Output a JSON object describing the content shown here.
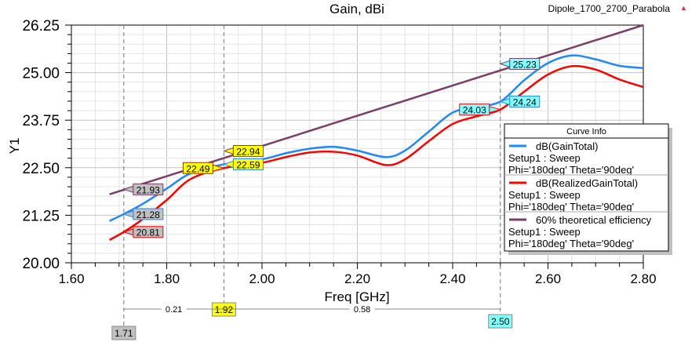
{
  "chart_data": {
    "type": "line",
    "title": "Gain, dBi",
    "project": "Dipole_1700_2700_Parabola",
    "xlabel": "Freq [GHz]",
    "ylabel": "Y1",
    "xlim": [
      1.6,
      2.8
    ],
    "ylim": [
      20.0,
      26.25
    ],
    "xticks": [
      "1.60",
      "1.80",
      "2.00",
      "2.20",
      "2.40",
      "2.60",
      "2.80"
    ],
    "yticks": [
      "20.00",
      "21.25",
      "22.50",
      "23.75",
      "25.00",
      "26.25"
    ],
    "grid": true,
    "legend_title": "Curve Info",
    "legend_placement": "right",
    "series": [
      {
        "name": "dB(GainTotal)",
        "setup": "Setup1 : Sweep",
        "vars": "Phi='180deg' Theta='90deg'",
        "color": "#1e88ff",
        "x": [
          1.68,
          1.71,
          1.75,
          1.8,
          1.85,
          1.92,
          2.0,
          2.05,
          2.1,
          2.15,
          2.2,
          2.26,
          2.3,
          2.35,
          2.4,
          2.45,
          2.5,
          2.55,
          2.6,
          2.65,
          2.7,
          2.75,
          2.8
        ],
        "y": [
          21.1,
          21.28,
          21.55,
          21.95,
          22.35,
          22.59,
          22.72,
          22.88,
          23.0,
          23.05,
          22.95,
          22.78,
          22.95,
          23.45,
          23.95,
          24.1,
          24.24,
          24.8,
          25.25,
          25.45,
          25.35,
          25.18,
          25.12
        ]
      },
      {
        "name": "dB(RealizedGainTotal)",
        "setup": "Setup1 : Sweep",
        "vars": "Phi='180deg' Theta='90deg'",
        "color": "#ff0000",
        "x": [
          1.68,
          1.71,
          1.75,
          1.8,
          1.85,
          1.92,
          2.0,
          2.05,
          2.1,
          2.15,
          2.2,
          2.26,
          2.3,
          2.35,
          2.4,
          2.45,
          2.5,
          2.55,
          2.6,
          2.65,
          2.7,
          2.75,
          2.8
        ],
        "y": [
          20.6,
          20.81,
          21.15,
          21.65,
          22.2,
          22.49,
          22.63,
          22.78,
          22.9,
          22.92,
          22.82,
          22.57,
          22.72,
          23.2,
          23.65,
          23.85,
          24.03,
          24.5,
          24.95,
          25.17,
          25.08,
          24.82,
          24.62
        ]
      },
      {
        "name": "60% theoretical efficiency",
        "setup": "Setup1 : Sweep",
        "vars": "Phi='180deg' Theta='90deg'",
        "color": "#7b3f66",
        "x": [
          1.68,
          2.8
        ],
        "y": [
          21.8,
          26.25
        ]
      }
    ],
    "markers": [
      {
        "x": 1.71,
        "label": "1.71",
        "color": "#c0c0c0",
        "values": [
          {
            "text": "21.93",
            "y": 21.93,
            "series": 2,
            "fill": "#c0c0c0"
          },
          {
            "text": "21.28",
            "y": 21.28,
            "series": 0,
            "fill": "#c0c0c0"
          },
          {
            "text": "20.81",
            "y": 20.81,
            "series": 1,
            "fill": "#c0c0c0"
          }
        ]
      },
      {
        "x": 1.92,
        "label": "1.92",
        "color": "#ffff00",
        "values": [
          {
            "text": "22.94",
            "y": 22.94,
            "series": 2,
            "fill": "#ffff00"
          },
          {
            "text": "22.59",
            "y": 22.59,
            "series": 0,
            "fill": "#ffff00"
          },
          {
            "text": "22.49",
            "y": 22.49,
            "series": 1,
            "fill": "#ffff00",
            "left": true
          }
        ]
      },
      {
        "x": 2.5,
        "label": "2.50",
        "color": "#80ffff",
        "values": [
          {
            "text": "25.23",
            "y": 25.23,
            "series": 2,
            "fill": "#80ffff"
          },
          {
            "text": "24.24",
            "y": 24.24,
            "series": 0,
            "fill": "#80ffff"
          },
          {
            "text": "24.03",
            "y": 24.03,
            "series": 1,
            "fill": "#80ffff",
            "left": true
          }
        ]
      }
    ],
    "deltas": [
      "0.21",
      "0.58"
    ]
  }
}
